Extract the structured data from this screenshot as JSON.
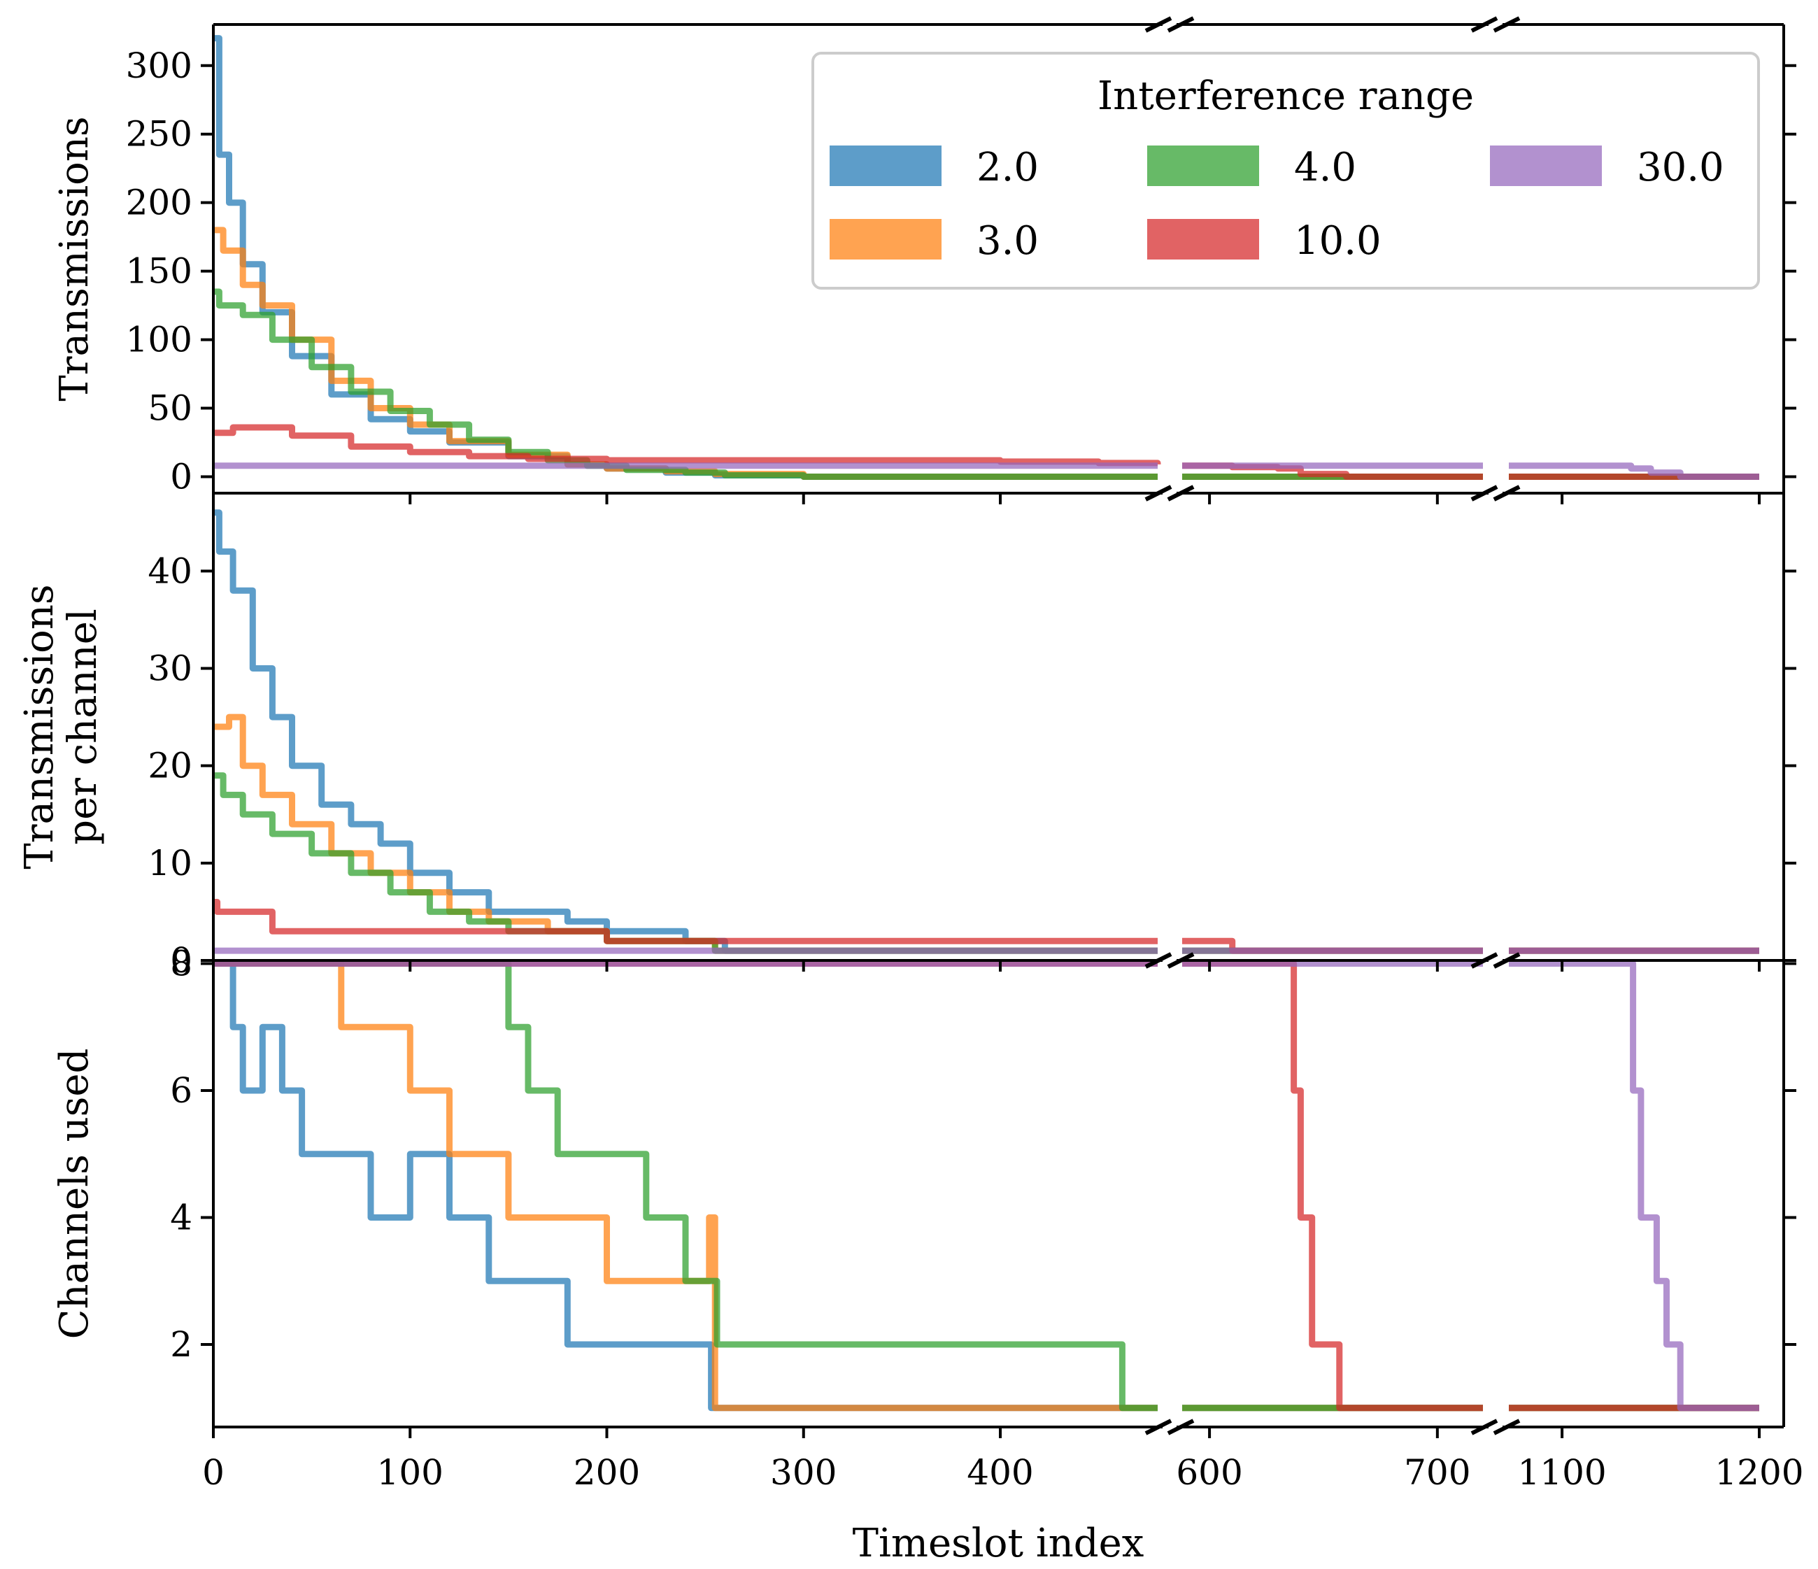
{
  "chart_data": {
    "type": "line",
    "xlabel": "Timeslot index",
    "legend": {
      "title": "Interference range",
      "placement": "top-right",
      "columns": 3
    },
    "x_segments": [
      {
        "range": [
          0,
          480
        ],
        "ticks": [
          0,
          100,
          200,
          300,
          400
        ]
      },
      {
        "range": [
          588,
          720
        ],
        "ticks": [
          600,
          700
        ]
      },
      {
        "range": [
          1073,
          1200
        ],
        "ticks": [
          1100,
          1200
        ]
      }
    ],
    "x_tick_labels": [
      "0",
      "100",
      "200",
      "300",
      "400",
      "600",
      "700",
      "1100",
      "1200"
    ],
    "series": [
      {
        "name": "2.0",
        "color": "#1f77b4"
      },
      {
        "name": "3.0",
        "color": "#ff7f0e"
      },
      {
        "name": "4.0",
        "color": "#2ca02c"
      },
      {
        "name": "10.0",
        "color": "#d62728"
      },
      {
        "name": "30.0",
        "color": "#9467bd"
      }
    ],
    "panels": [
      {
        "id": "transmissions",
        "ylabel": [
          "Transmissions"
        ],
        "ylim": [
          -12,
          330
        ],
        "yticks": [
          0,
          50,
          100,
          150,
          200,
          250,
          300
        ],
        "ytick_labels": [
          "0",
          "50",
          "100",
          "150",
          "200",
          "250",
          "300"
        ],
        "series_points": {
          "2.0": [
            [
              0,
              320
            ],
            [
              3,
              235
            ],
            [
              8,
              200
            ],
            [
              15,
              155
            ],
            [
              25,
              120
            ],
            [
              40,
              88
            ],
            [
              60,
              60
            ],
            [
              80,
              42
            ],
            [
              100,
              33
            ],
            [
              120,
              25
            ],
            [
              150,
              15
            ],
            [
              180,
              9
            ],
            [
              200,
              6
            ],
            [
              230,
              3
            ],
            [
              255,
              1
            ],
            [
              300,
              0
            ],
            [
              480,
              0
            ],
            [
              588,
              0
            ],
            [
              720,
              0
            ],
            [
              1073,
              0
            ],
            [
              1200,
              0
            ]
          ],
          "3.0": [
            [
              0,
              180
            ],
            [
              5,
              165
            ],
            [
              15,
              140
            ],
            [
              25,
              125
            ],
            [
              40,
              100
            ],
            [
              60,
              70
            ],
            [
              80,
              50
            ],
            [
              100,
              38
            ],
            [
              120,
              26
            ],
            [
              150,
              16
            ],
            [
              180,
              9
            ],
            [
              200,
              6
            ],
            [
              230,
              4
            ],
            [
              255,
              2
            ],
            [
              300,
              0
            ],
            [
              480,
              0
            ],
            [
              588,
              0
            ],
            [
              720,
              0
            ],
            [
              1073,
              0
            ],
            [
              1200,
              0
            ]
          ],
          "4.0": [
            [
              0,
              135
            ],
            [
              3,
              125
            ],
            [
              15,
              118
            ],
            [
              30,
              100
            ],
            [
              50,
              80
            ],
            [
              70,
              62
            ],
            [
              90,
              48
            ],
            [
              110,
              38
            ],
            [
              130,
              27
            ],
            [
              150,
              18
            ],
            [
              170,
              12
            ],
            [
              190,
              8
            ],
            [
              210,
              5
            ],
            [
              240,
              3
            ],
            [
              260,
              1
            ],
            [
              300,
              0
            ],
            [
              480,
              0
            ],
            [
              588,
              0
            ],
            [
              720,
              0
            ],
            [
              1073,
              0
            ],
            [
              1200,
              0
            ]
          ],
          "10.0": [
            [
              0,
              32
            ],
            [
              10,
              36
            ],
            [
              40,
              30
            ],
            [
              70,
              22
            ],
            [
              100,
              18
            ],
            [
              130,
              15
            ],
            [
              160,
              13
            ],
            [
              200,
              12
            ],
            [
              250,
              12
            ],
            [
              300,
              12
            ],
            [
              350,
              12
            ],
            [
              400,
              11
            ],
            [
              450,
              10
            ],
            [
              480,
              9
            ],
            [
              588,
              8
            ],
            [
              610,
              7
            ],
            [
              630,
              6
            ],
            [
              640,
              2
            ],
            [
              660,
              0
            ],
            [
              720,
              0
            ],
            [
              1073,
              0
            ],
            [
              1200,
              0
            ]
          ],
          "30.0": [
            [
              0,
              8
            ],
            [
              480,
              8
            ],
            [
              588,
              8
            ],
            [
              720,
              8
            ],
            [
              1073,
              8
            ],
            [
              1120,
              8
            ],
            [
              1135,
              6
            ],
            [
              1145,
              3
            ],
            [
              1160,
              0
            ],
            [
              1200,
              0
            ]
          ]
        }
      },
      {
        "id": "per-channel",
        "ylabel": [
          "Transmissions",
          "per channel"
        ],
        "ylim": [
          0,
          48
        ],
        "yticks": [
          0,
          10,
          20,
          30,
          40
        ],
        "ytick_labels": [
          "0",
          "10",
          "20",
          "30",
          "40"
        ],
        "series_points": {
          "2.0": [
            [
              0,
              46
            ],
            [
              3,
              42
            ],
            [
              10,
              38
            ],
            [
              20,
              30
            ],
            [
              30,
              25
            ],
            [
              40,
              20
            ],
            [
              55,
              16
            ],
            [
              70,
              14
            ],
            [
              85,
              12
            ],
            [
              100,
              9
            ],
            [
              120,
              7
            ],
            [
              140,
              5
            ],
            [
              160,
              5
            ],
            [
              180,
              4
            ],
            [
              200,
              3
            ],
            [
              220,
              3
            ],
            [
              240,
              2
            ],
            [
              260,
              1
            ],
            [
              300,
              1
            ],
            [
              480,
              1
            ],
            [
              588,
              1
            ],
            [
              720,
              1
            ],
            [
              1073,
              1
            ],
            [
              1200,
              1
            ]
          ],
          "3.0": [
            [
              0,
              24
            ],
            [
              8,
              25
            ],
            [
              15,
              20
            ],
            [
              25,
              17
            ],
            [
              40,
              14
            ],
            [
              60,
              11
            ],
            [
              80,
              9
            ],
            [
              100,
              7
            ],
            [
              120,
              5
            ],
            [
              140,
              4
            ],
            [
              170,
              3
            ],
            [
              200,
              2
            ],
            [
              230,
              2
            ],
            [
              255,
              1
            ],
            [
              300,
              1
            ],
            [
              480,
              1
            ],
            [
              588,
              1
            ],
            [
              720,
              1
            ],
            [
              1073,
              1
            ],
            [
              1200,
              1
            ]
          ],
          "4.0": [
            [
              0,
              19
            ],
            [
              5,
              17
            ],
            [
              15,
              15
            ],
            [
              30,
              13
            ],
            [
              50,
              11
            ],
            [
              70,
              9
            ],
            [
              90,
              7
            ],
            [
              110,
              5
            ],
            [
              130,
              4
            ],
            [
              150,
              3
            ],
            [
              170,
              3
            ],
            [
              200,
              2
            ],
            [
              230,
              2
            ],
            [
              255,
              1
            ],
            [
              300,
              1
            ],
            [
              480,
              1
            ],
            [
              588,
              1
            ],
            [
              720,
              1
            ],
            [
              1073,
              1
            ],
            [
              1200,
              1
            ]
          ],
          "10.0": [
            [
              0,
              6
            ],
            [
              2,
              5
            ],
            [
              20,
              5
            ],
            [
              30,
              3
            ],
            [
              100,
              3
            ],
            [
              200,
              2
            ],
            [
              300,
              2
            ],
            [
              400,
              2
            ],
            [
              480,
              2
            ],
            [
              588,
              2
            ],
            [
              600,
              2
            ],
            [
              610,
              1
            ],
            [
              720,
              1
            ],
            [
              1073,
              1
            ],
            [
              1200,
              1
            ]
          ],
          "30.0": [
            [
              0,
              1
            ],
            [
              480,
              1
            ],
            [
              588,
              1
            ],
            [
              720,
              1
            ],
            [
              1073,
              1
            ],
            [
              1200,
              1
            ]
          ]
        }
      },
      {
        "id": "channels",
        "ylabel": [
          "Channels used"
        ],
        "ylim": [
          0.7,
          8.05
        ],
        "yticks": [
          2,
          4,
          6,
          8
        ],
        "ytick_labels": [
          "2",
          "4",
          "6",
          "8"
        ],
        "series_points": {
          "2.0": [
            [
              0,
              8
            ],
            [
              8,
              8
            ],
            [
              10,
              7
            ],
            [
              15,
              6
            ],
            [
              25,
              7
            ],
            [
              35,
              6
            ],
            [
              45,
              5
            ],
            [
              70,
              5
            ],
            [
              80,
              4
            ],
            [
              100,
              5
            ],
            [
              120,
              4
            ],
            [
              140,
              3
            ],
            [
              170,
              3
            ],
            [
              180,
              2
            ],
            [
              250,
              2
            ],
            [
              253,
              1
            ],
            [
              480,
              1
            ],
            [
              588,
              1
            ],
            [
              720,
              1
            ],
            [
              1073,
              1
            ],
            [
              1200,
              1
            ]
          ],
          "3.0": [
            [
              0,
              8
            ],
            [
              62,
              8
            ],
            [
              65,
              7
            ],
            [
              90,
              7
            ],
            [
              100,
              6
            ],
            [
              120,
              5
            ],
            [
              150,
              4
            ],
            [
              190,
              4
            ],
            [
              200,
              3
            ],
            [
              240,
              3
            ],
            [
              252,
              4
            ],
            [
              255,
              1
            ],
            [
              480,
              1
            ],
            [
              588,
              1
            ],
            [
              720,
              1
            ],
            [
              1073,
              1
            ],
            [
              1200,
              1
            ]
          ],
          "4.0": [
            [
              0,
              8
            ],
            [
              145,
              8
            ],
            [
              150,
              7
            ],
            [
              160,
              6
            ],
            [
              175,
              5
            ],
            [
              200,
              5
            ],
            [
              220,
              4
            ],
            [
              240,
              3
            ],
            [
              252,
              3
            ],
            [
              256,
              2
            ],
            [
              460,
              2
            ],
            [
              462,
              1
            ],
            [
              480,
              1
            ],
            [
              588,
              1
            ],
            [
              720,
              1
            ],
            [
              1073,
              1
            ],
            [
              1200,
              1
            ]
          ],
          "10.0": [
            [
              0,
              8
            ],
            [
              480,
              8
            ],
            [
              588,
              8
            ],
            [
              633,
              8
            ],
            [
              637,
              6
            ],
            [
              640,
              4
            ],
            [
              645,
              2
            ],
            [
              655,
              2
            ],
            [
              657,
              1
            ],
            [
              720,
              1
            ],
            [
              1073,
              1
            ],
            [
              1200,
              1
            ]
          ],
          "30.0": [
            [
              0,
              8
            ],
            [
              480,
              8
            ],
            [
              588,
              8
            ],
            [
              720,
              8
            ],
            [
              1073,
              8
            ],
            [
              1130,
              8
            ],
            [
              1136,
              6
            ],
            [
              1140,
              4
            ],
            [
              1148,
              3
            ],
            [
              1153,
              2
            ],
            [
              1160,
              1
            ],
            [
              1200,
              1
            ]
          ]
        }
      }
    ]
  }
}
